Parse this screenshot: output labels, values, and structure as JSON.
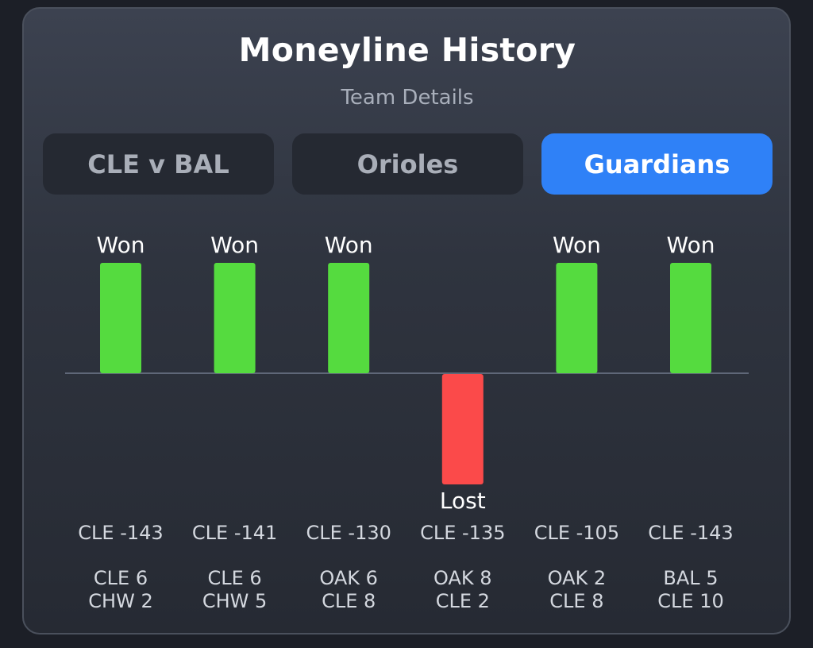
{
  "title": "Moneyline History",
  "subtitle": "Team Details",
  "tabs": [
    {
      "label": "CLE v BAL",
      "active": false
    },
    {
      "label": "Orioles",
      "active": false
    },
    {
      "label": "Guardians",
      "active": true
    }
  ],
  "colors": {
    "won": "#55db3f",
    "lost": "#fb4a4a",
    "accent": "#2f81f7",
    "baseline": "#5f6778"
  },
  "chart_data": {
    "type": "bar",
    "title": "",
    "xlabel": "",
    "ylabel": "",
    "games": [
      {
        "result": "Won",
        "line": "CLE -143",
        "score_top": "CLE 6",
        "score_bottom": "CHW 2"
      },
      {
        "result": "Won",
        "line": "CLE -141",
        "score_top": "CLE 6",
        "score_bottom": "CHW 5"
      },
      {
        "result": "Won",
        "line": "CLE -130",
        "score_top": "OAK 6",
        "score_bottom": "CLE 8"
      },
      {
        "result": "Lost",
        "line": "CLE -135",
        "score_top": "OAK 8",
        "score_bottom": "CLE 2"
      },
      {
        "result": "Won",
        "line": "CLE -105",
        "score_top": "OAK 2",
        "score_bottom": "CLE 8"
      },
      {
        "result": "Won",
        "line": "CLE -143",
        "score_top": "BAL 5",
        "score_bottom": "CLE 10"
      }
    ],
    "values": [
      1,
      1,
      1,
      -1,
      1,
      1
    ],
    "ylim": [
      -1,
      1
    ]
  }
}
